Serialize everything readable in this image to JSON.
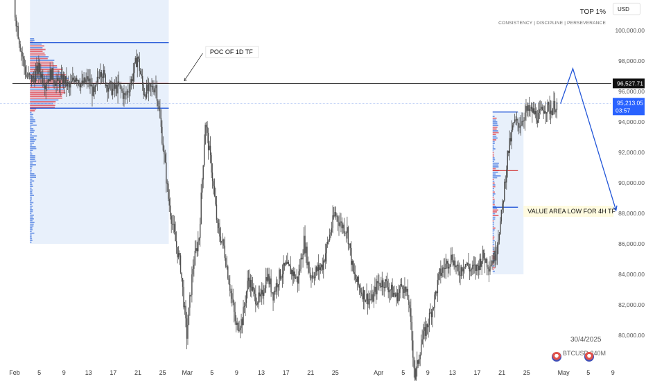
{
  "chart_data": {
    "type": "candlestick",
    "symbol": "BTCUSD",
    "timeframe": "240M",
    "date_shown": "30/4/2025",
    "currency": "USD",
    "ylim": [
      78500,
      102000
    ],
    "price_ticks": [
      {
        "value": 100000,
        "label": "100,000.00"
      },
      {
        "value": 98000,
        "label": "98,000.00"
      },
      {
        "value": 96000,
        "label": "96,000.00"
      },
      {
        "value": 94000,
        "label": "94,000.00"
      },
      {
        "value": 92000,
        "label": "92,000.00"
      },
      {
        "value": 90000,
        "label": "90,000.00"
      },
      {
        "value": 88000,
        "label": "88,000.00"
      },
      {
        "value": 86000,
        "label": "86,000.00"
      },
      {
        "value": 84000,
        "label": "84,000.00"
      },
      {
        "value": 82000,
        "label": "82,000.00"
      },
      {
        "value": 80000,
        "label": "80,000.00"
      }
    ],
    "x_ticks": [
      {
        "day": 0,
        "label": "Feb"
      },
      {
        "day": 4,
        "label": "5"
      },
      {
        "day": 8,
        "label": "9"
      },
      {
        "day": 12,
        "label": "13"
      },
      {
        "day": 16,
        "label": "17"
      },
      {
        "day": 20,
        "label": "21"
      },
      {
        "day": 24,
        "label": "25"
      },
      {
        "day": 28,
        "label": "Mar"
      },
      {
        "day": 32,
        "label": "5"
      },
      {
        "day": 36,
        "label": "9"
      },
      {
        "day": 40,
        "label": "13"
      },
      {
        "day": 44,
        "label": "17"
      },
      {
        "day": 48,
        "label": "21"
      },
      {
        "day": 52,
        "label": "25"
      },
      {
        "day": 59,
        "label": "Apr"
      },
      {
        "day": 63,
        "label": "5"
      },
      {
        "day": 67,
        "label": "9"
      },
      {
        "day": 71,
        "label": "13"
      },
      {
        "day": 75,
        "label": "17"
      },
      {
        "day": 79,
        "label": "21"
      },
      {
        "day": 83,
        "label": "25"
      },
      {
        "day": 89,
        "label": "May"
      },
      {
        "day": 93,
        "label": "5"
      },
      {
        "day": 97,
        "label": "9"
      }
    ],
    "closes": [
      [
        0,
        101500
      ],
      [
        1,
        99000
      ],
      [
        2,
        97000
      ],
      [
        3,
        96800
      ],
      [
        4,
        97500
      ],
      [
        5,
        96600
      ],
      [
        6,
        97200
      ],
      [
        7,
        96500
      ],
      [
        8,
        96800
      ],
      [
        9,
        96200
      ],
      [
        10,
        97100
      ],
      [
        11,
        96400
      ],
      [
        12,
        96800
      ],
      [
        13,
        95700
      ],
      [
        14,
        97600
      ],
      [
        15,
        96500
      ],
      [
        16,
        96100
      ],
      [
        17,
        96300
      ],
      [
        18,
        95600
      ],
      [
        19,
        96700
      ],
      [
        20,
        98300
      ],
      [
        21,
        96000
      ],
      [
        22,
        96100
      ],
      [
        23,
        96400
      ],
      [
        24,
        93000
      ],
      [
        25,
        89000
      ],
      [
        26,
        86500
      ],
      [
        27,
        84500
      ],
      [
        28,
        80000
      ],
      [
        29,
        84500
      ],
      [
        30,
        86500
      ],
      [
        31,
        94000
      ],
      [
        32,
        91000
      ],
      [
        33,
        87000
      ],
      [
        34,
        85800
      ],
      [
        35,
        83200
      ],
      [
        36,
        80500
      ],
      [
        37,
        81000
      ],
      [
        38,
        83800
      ],
      [
        39,
        82500
      ],
      [
        40,
        82300
      ],
      [
        41,
        84000
      ],
      [
        42,
        82700
      ],
      [
        43,
        83900
      ],
      [
        44,
        84500
      ],
      [
        45,
        84200
      ],
      [
        46,
        83600
      ],
      [
        47,
        86200
      ],
      [
        48,
        83900
      ],
      [
        49,
        84200
      ],
      [
        50,
        84600
      ],
      [
        51,
        86300
      ],
      [
        52,
        88000
      ],
      [
        53,
        87300
      ],
      [
        54,
        86900
      ],
      [
        55,
        84000
      ],
      [
        56,
        83100
      ],
      [
        57,
        82500
      ],
      [
        58,
        82300
      ],
      [
        59,
        83400
      ],
      [
        60,
        83500
      ],
      [
        61,
        83000
      ],
      [
        62,
        82500
      ],
      [
        63,
        83400
      ],
      [
        64,
        82200
      ],
      [
        65,
        77200
      ],
      [
        66,
        79500
      ],
      [
        67,
        80700
      ],
      [
        68,
        82100
      ],
      [
        69,
        84000
      ],
      [
        70,
        84600
      ],
      [
        71,
        85200
      ],
      [
        72,
        84000
      ],
      [
        73,
        84800
      ],
      [
        74,
        84300
      ],
      [
        75,
        84400
      ],
      [
        76,
        85200
      ],
      [
        77,
        84600
      ],
      [
        78,
        85300
      ],
      [
        79,
        87800
      ],
      [
        80,
        91800
      ],
      [
        81,
        93900
      ],
      [
        82,
        93900
      ],
      [
        83,
        94700
      ],
      [
        84,
        94700
      ],
      [
        85,
        94300
      ],
      [
        86,
        95000
      ],
      [
        87,
        94800
      ],
      [
        88,
        95200
      ]
    ],
    "value_area_1d": {
      "high": 99200,
      "poc": 96527.71,
      "low": 94900
    },
    "value_area_4h": {
      "high": 94650,
      "poc": 90800,
      "low": 88400
    },
    "horizontal_level": {
      "value": 96527.71,
      "label": "96,527.71"
    },
    "current_price": {
      "value": 95213.05,
      "label": "95,213.05",
      "countdown": "03:57"
    },
    "projection": [
      [
        88.5,
        95200
      ],
      [
        90.5,
        97500
      ],
      [
        97.5,
        88200
      ]
    ],
    "annotations": [
      {
        "text": "POC OF 1D TF"
      },
      {
        "text": "VALUE AREA LOW FOR 4H TF"
      }
    ]
  },
  "brand": {
    "title": "TOP 1%",
    "subtitle": "CONSISTENCY | DISCIPLINE | PERSEVERANCE"
  },
  "colors": {
    "candles": "#4d4d4d",
    "profile_blue": "#4a7be0",
    "profile_red": "#e0404a",
    "zone": "#e8f0fb",
    "line_blue": "#2256d8",
    "line_red": "#d23a3a",
    "price_badge": "#2962ff",
    "level_badge": "#111111",
    "label_bg": "#fffbe0"
  }
}
